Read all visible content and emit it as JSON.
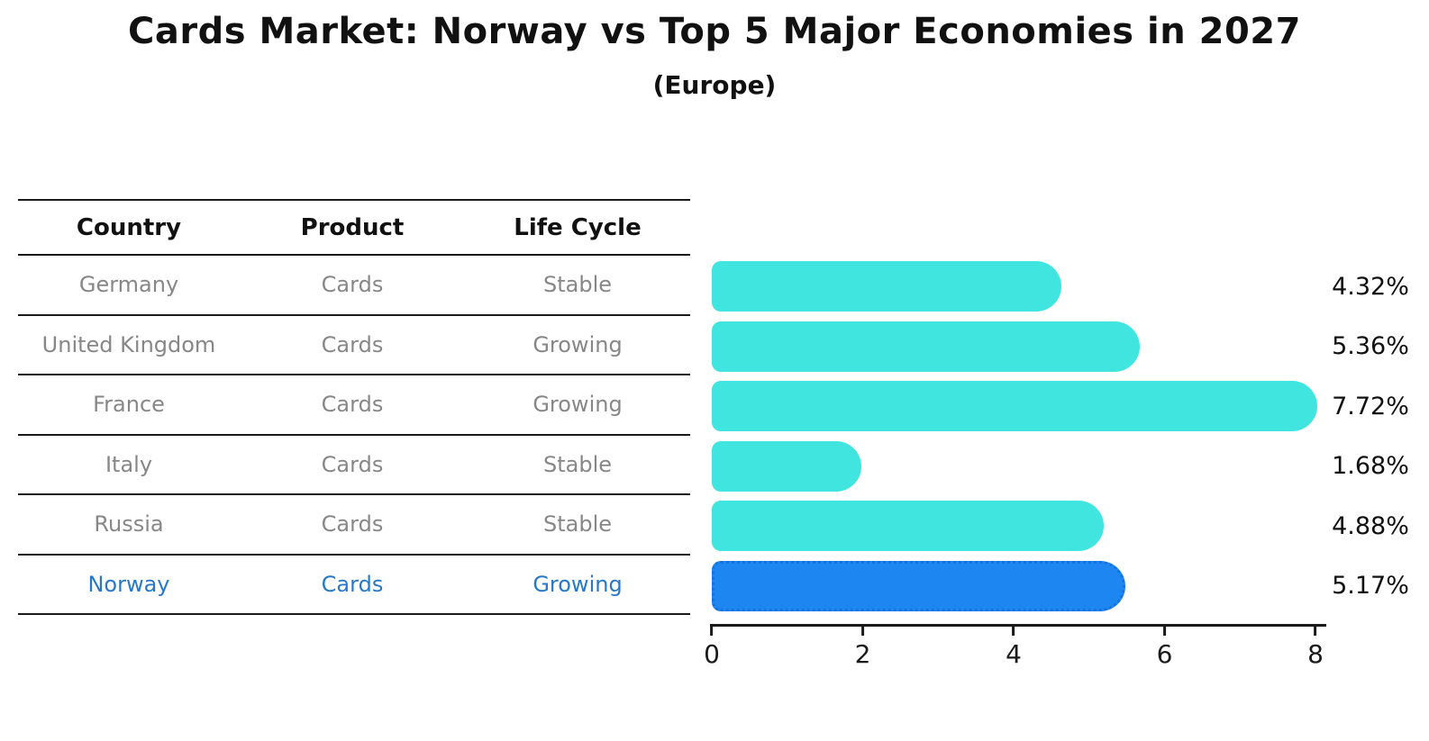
{
  "title": "Cards Market: Norway vs Top 5 Major Economies in 2027",
  "subtitle": "(Europe)",
  "table": {
    "headers": [
      "Country",
      "Product",
      "Life Cycle"
    ],
    "rows": [
      {
        "country": "Germany",
        "product": "Cards",
        "life_cycle": "Stable",
        "highlight": false
      },
      {
        "country": "United Kingdom",
        "product": "Cards",
        "life_cycle": "Growing",
        "highlight": false
      },
      {
        "country": "France",
        "product": "Cards",
        "life_cycle": "Growing",
        "highlight": false
      },
      {
        "country": "Italy",
        "product": "Cards",
        "life_cycle": "Stable",
        "highlight": false
      },
      {
        "country": "Russia",
        "product": "Cards",
        "life_cycle": "Stable",
        "highlight": false
      },
      {
        "country": "Norway",
        "product": "Cards",
        "life_cycle": "Growing",
        "highlight": true
      }
    ]
  },
  "chart_data": {
    "type": "bar",
    "orientation": "horizontal",
    "title": "Cards Market: Norway vs Top 5 Major Economies in 2027 (Europe)",
    "categories": [
      "Germany",
      "United Kingdom",
      "France",
      "Italy",
      "Russia",
      "Norway"
    ],
    "values": [
      4.32,
      5.36,
      7.72,
      1.68,
      4.88,
      5.17
    ],
    "value_labels": [
      "4.32%",
      "5.36%",
      "7.72%",
      "1.68%",
      "4.88%",
      "5.17%"
    ],
    "xlim": [
      0,
      8
    ],
    "x_ticks": [
      "0",
      "2",
      "4",
      "6",
      "8"
    ],
    "grid": false,
    "legend": false,
    "highlight_index": 5
  },
  "colors": {
    "bar_fill": "#40E5E0",
    "highlight_fill": "#1E86F0",
    "highlight_edge": "#1272E0",
    "muted_text": "#878787",
    "highlight_text": "#2679C8",
    "axis": "#1a1a1a"
  }
}
